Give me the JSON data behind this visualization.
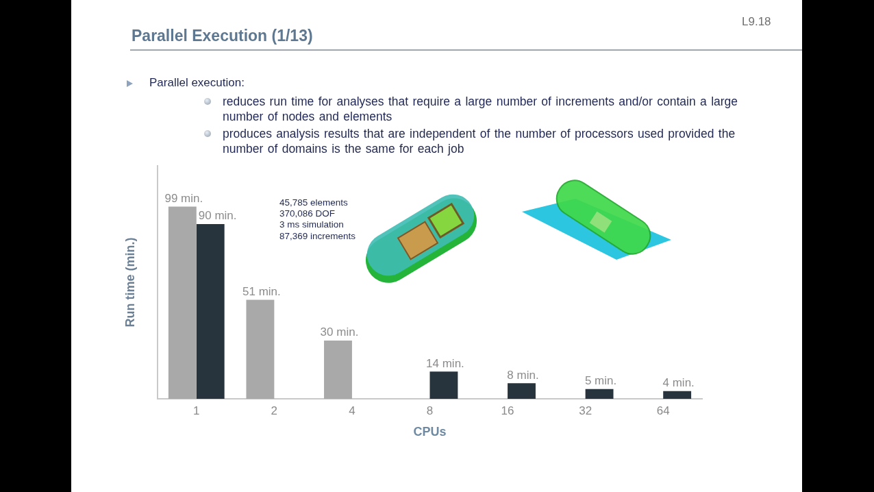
{
  "chart_data": {
    "type": "bar",
    "title": "Parallel Execution (1/13)",
    "xlabel": "CPUs",
    "ylabel": "Run time (min.)",
    "annotations": [
      "L9.18",
      "Parallel execution:",
      "reduces run time for analyses that require a large number of increments and/or contain a large number of nodes and elements",
      "produces analysis results that are independent of the number of processors used provided the number of domains is the same for each job",
      "45,785 elements",
      "370,086 DOF",
      "3 ms simulation",
      "87,369 increments"
    ],
    "categories": [
      "1",
      "2",
      "4",
      "8",
      "16",
      "32",
      "64"
    ],
    "series": [
      {
        "color": "#a9a9a9",
        "values": [
          99,
          51,
          30,
          null,
          null,
          null,
          null
        ],
        "value_labels": [
          "99 min.",
          "51 min.",
          "30 min.",
          null,
          null,
          null,
          null
        ]
      },
      {
        "color": "#27333d",
        "values": [
          90,
          null,
          null,
          14,
          8,
          5,
          4
        ],
        "value_labels": [
          "90 min.",
          null,
          null,
          "14 min.",
          "8 min.",
          "5 min.",
          "4 min."
        ]
      }
    ],
    "ylim": [
      0,
      120
    ],
    "tick_labels": "x",
    "grid": false,
    "legend": false
  }
}
